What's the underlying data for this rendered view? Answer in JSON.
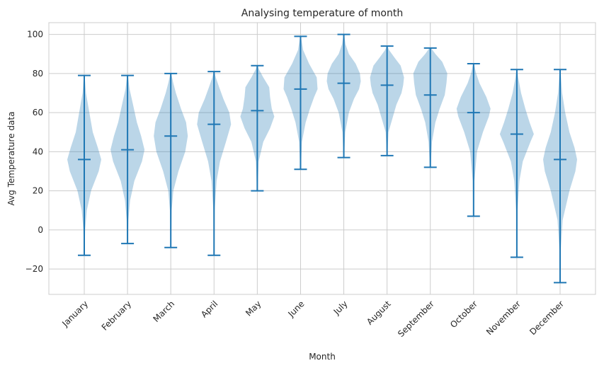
{
  "chart_data": {
    "type": "violin",
    "title": "Analysing temperature of month",
    "xlabel": "Month",
    "ylabel": "Avg Temperature data",
    "ylim": [
      -33,
      106
    ],
    "yticks": [
      -20,
      0,
      20,
      40,
      60,
      80,
      100
    ],
    "ytick_labels": [
      "−20",
      "0",
      "20",
      "40",
      "60",
      "80",
      "100"
    ],
    "grid": true,
    "categories": [
      "January",
      "February",
      "March",
      "April",
      "May",
      "June",
      "July",
      "August",
      "September",
      "October",
      "November",
      "December"
    ],
    "min": [
      -13,
      -7,
      -9,
      -13,
      20,
      31,
      37,
      38,
      32,
      7,
      -14,
      -27
    ],
    "median": [
      36,
      41,
      48,
      54,
      61,
      72,
      75,
      74,
      69,
      60,
      49,
      36
    ],
    "max": [
      79,
      79,
      80,
      81,
      84,
      99,
      100,
      94,
      93,
      85,
      82,
      82
    ],
    "color": "#1f77b4",
    "density_profiles": [
      [
        [
          -13,
          0.02
        ],
        [
          0,
          0.05
        ],
        [
          10,
          0.15
        ],
        [
          20,
          0.4
        ],
        [
          30,
          0.85
        ],
        [
          36,
          1.0
        ],
        [
          42,
          0.8
        ],
        [
          50,
          0.5
        ],
        [
          60,
          0.3
        ],
        [
          70,
          0.1
        ],
        [
          79,
          0.02
        ]
      ],
      [
        [
          -7,
          0.02
        ],
        [
          5,
          0.05
        ],
        [
          15,
          0.15
        ],
        [
          25,
          0.4
        ],
        [
          35,
          0.85
        ],
        [
          41,
          1.0
        ],
        [
          48,
          0.8
        ],
        [
          55,
          0.55
        ],
        [
          65,
          0.3
        ],
        [
          72,
          0.12
        ],
        [
          79,
          0.02
        ]
      ],
      [
        [
          -9,
          0.02
        ],
        [
          10,
          0.05
        ],
        [
          20,
          0.15
        ],
        [
          30,
          0.45
        ],
        [
          40,
          0.85
        ],
        [
          48,
          1.0
        ],
        [
          55,
          0.9
        ],
        [
          62,
          0.6
        ],
        [
          70,
          0.3
        ],
        [
          75,
          0.15
        ],
        [
          80,
          0.02
        ]
      ],
      [
        [
          -13,
          0.02
        ],
        [
          10,
          0.04
        ],
        [
          25,
          0.15
        ],
        [
          35,
          0.35
        ],
        [
          45,
          0.7
        ],
        [
          54,
          1.0
        ],
        [
          60,
          0.9
        ],
        [
          67,
          0.55
        ],
        [
          73,
          0.3
        ],
        [
          78,
          0.1
        ],
        [
          81,
          0.02
        ]
      ],
      [
        [
          20,
          0.02
        ],
        [
          35,
          0.08
        ],
        [
          45,
          0.35
        ],
        [
          52,
          0.75
        ],
        [
          58,
          1.0
        ],
        [
          62,
          0.85
        ],
        [
          68,
          0.75
        ],
        [
          73,
          0.7
        ],
        [
          78,
          0.35
        ],
        [
          82,
          0.1
        ],
        [
          84,
          0.02
        ]
      ],
      [
        [
          31,
          0.02
        ],
        [
          45,
          0.08
        ],
        [
          55,
          0.3
        ],
        [
          62,
          0.55
        ],
        [
          68,
          0.8
        ],
        [
          72,
          1.0
        ],
        [
          78,
          0.95
        ],
        [
          85,
          0.5
        ],
        [
          92,
          0.15
        ],
        [
          99,
          0.02
        ]
      ],
      [
        [
          37,
          0.02
        ],
        [
          50,
          0.08
        ],
        [
          60,
          0.3
        ],
        [
          67,
          0.6
        ],
        [
          72,
          0.9
        ],
        [
          76,
          1.0
        ],
        [
          80,
          0.95
        ],
        [
          85,
          0.7
        ],
        [
          90,
          0.3
        ],
        [
          95,
          0.1
        ],
        [
          100,
          0.02
        ]
      ],
      [
        [
          38,
          0.02
        ],
        [
          50,
          0.08
        ],
        [
          58,
          0.35
        ],
        [
          64,
          0.55
        ],
        [
          70,
          0.85
        ],
        [
          74,
          0.95
        ],
        [
          78,
          1.0
        ],
        [
          84,
          0.8
        ],
        [
          88,
          0.45
        ],
        [
          92,
          0.12
        ],
        [
          94,
          0.02
        ]
      ],
      [
        [
          32,
          0.02
        ],
        [
          45,
          0.1
        ],
        [
          55,
          0.3
        ],
        [
          62,
          0.55
        ],
        [
          69,
          0.85
        ],
        [
          75,
          0.95
        ],
        [
          80,
          1.0
        ],
        [
          86,
          0.7
        ],
        [
          90,
          0.3
        ],
        [
          93,
          0.05
        ]
      ],
      [
        [
          7,
          0.02
        ],
        [
          25,
          0.05
        ],
        [
          40,
          0.2
        ],
        [
          50,
          0.55
        ],
        [
          58,
          0.9
        ],
        [
          62,
          1.0
        ],
        [
          68,
          0.75
        ],
        [
          75,
          0.35
        ],
        [
          80,
          0.15
        ],
        [
          85,
          0.02
        ]
      ],
      [
        [
          -14,
          0.02
        ],
        [
          10,
          0.04
        ],
        [
          25,
          0.15
        ],
        [
          35,
          0.35
        ],
        [
          45,
          0.8
        ],
        [
          49,
          1.0
        ],
        [
          55,
          0.75
        ],
        [
          62,
          0.5
        ],
        [
          70,
          0.25
        ],
        [
          78,
          0.08
        ],
        [
          82,
          0.02
        ]
      ],
      [
        [
          -27,
          0.02
        ],
        [
          -10,
          0.04
        ],
        [
          5,
          0.15
        ],
        [
          20,
          0.55
        ],
        [
          30,
          0.9
        ],
        [
          36,
          1.0
        ],
        [
          42,
          0.85
        ],
        [
          50,
          0.55
        ],
        [
          60,
          0.3
        ],
        [
          70,
          0.12
        ],
        [
          82,
          0.02
        ]
      ]
    ]
  }
}
